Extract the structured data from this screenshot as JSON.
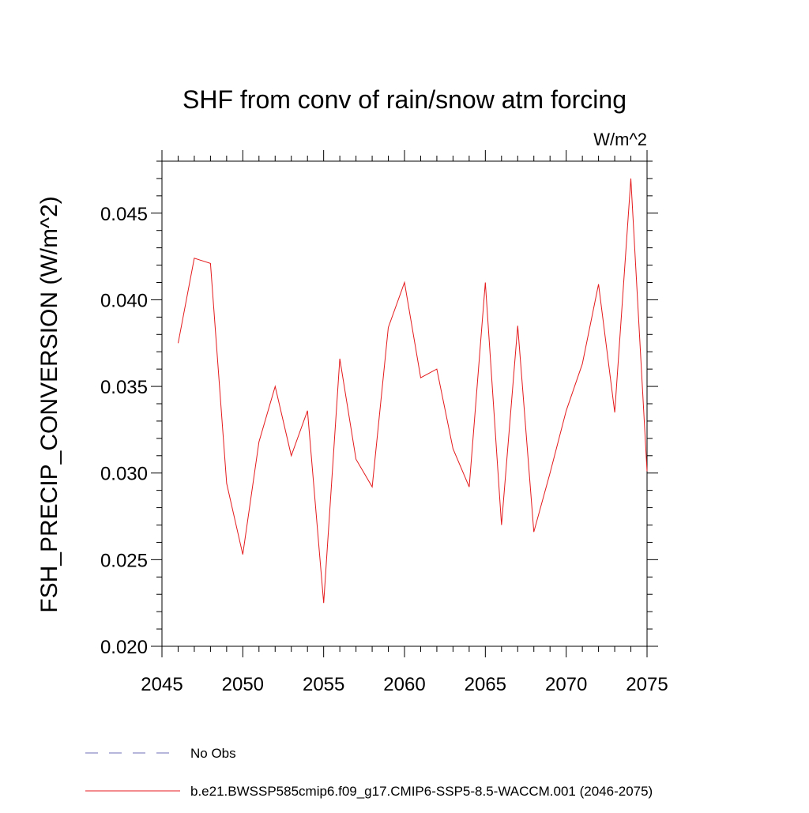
{
  "chart_data": {
    "type": "line",
    "title": "SHF from conv of rain/snow atm forcing",
    "units_label": "W/m^2",
    "ylabel": "FSH_PRECIP_CONVERSION  (W/m^2)",
    "xlabel": "",
    "xlim": [
      2045,
      2075
    ],
    "ylim": [
      0.02,
      0.048
    ],
    "x_ticks": [
      2045,
      2050,
      2055,
      2060,
      2065,
      2070,
      2075
    ],
    "x_tick_labels": [
      "2045",
      "2050",
      "2055",
      "2060",
      "2065",
      "2070",
      "2075"
    ],
    "y_ticks": [
      0.02,
      0.025,
      0.03,
      0.035,
      0.04,
      0.045
    ],
    "y_tick_labels": [
      "0.020",
      "0.025",
      "0.030",
      "0.035",
      "0.040",
      "0.045"
    ],
    "grid": false,
    "legend_placement": "bottom",
    "series": [
      {
        "name": "b.e21.BWSSP585cmip6.f09_g17.CMIP6-SSP5-8.5-WACCM.001 (2046-2075)",
        "color": "#e41a1c",
        "style": "solid",
        "x": [
          2046,
          2047,
          2048,
          2049,
          2050,
          2051,
          2052,
          2053,
          2054,
          2055,
          2056,
          2057,
          2058,
          2059,
          2060,
          2061,
          2062,
          2063,
          2064,
          2065,
          2066,
          2067,
          2068,
          2069,
          2070,
          2071,
          2072,
          2073,
          2074,
          2075
        ],
        "values": [
          0.0375,
          0.0424,
          0.0421,
          0.0294,
          0.0253,
          0.0318,
          0.035,
          0.031,
          0.0336,
          0.0225,
          0.0366,
          0.0308,
          0.0292,
          0.0384,
          0.041,
          0.0355,
          0.036,
          0.0314,
          0.0292,
          0.041,
          0.027,
          0.0385,
          0.0266,
          0.03,
          0.0336,
          0.0363,
          0.0409,
          0.0335,
          0.047,
          0.0301
        ]
      }
    ],
    "legend": [
      {
        "label": "No Obs",
        "color": "#6f6fb8",
        "style": "dashed"
      },
      {
        "label": "b.e21.BWSSP585cmip6.f09_g17.CMIP6-SSP5-8.5-WACCM.001 (2046-2075)",
        "color": "#e41a1c",
        "style": "solid"
      }
    ]
  }
}
